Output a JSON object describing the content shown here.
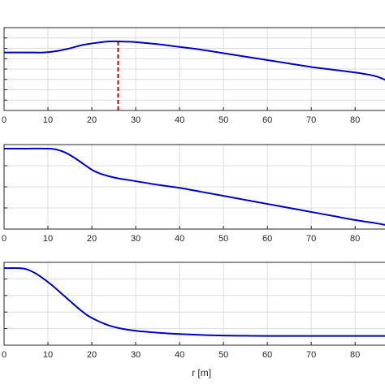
{
  "chart_data": [
    {
      "type": "line",
      "xlabel": "",
      "ylabel": "",
      "xlim": [
        0,
        87
      ],
      "ylim": [
        0,
        6
      ],
      "grid": true,
      "xticks": [
        "0",
        "10",
        "20",
        "30",
        "40",
        "50",
        "60",
        "70",
        "80"
      ],
      "vline": {
        "x": 26,
        "color": "#cc0000",
        "style": "dashed"
      },
      "series": [
        {
          "color": "#0000bb",
          "x": [
            0,
            5,
            9,
            12,
            15,
            18,
            21,
            24,
            26,
            28,
            30,
            35,
            40,
            45,
            50,
            55,
            60,
            65,
            70,
            75,
            80,
            83,
            85,
            87
          ],
          "y": [
            4.2,
            4.2,
            4.2,
            4.3,
            4.5,
            4.75,
            4.9,
            5.0,
            5.0,
            4.98,
            4.95,
            4.8,
            4.6,
            4.4,
            4.15,
            3.9,
            3.65,
            3.4,
            3.15,
            2.95,
            2.75,
            2.6,
            2.45,
            2.2
          ]
        }
      ]
    },
    {
      "type": "line",
      "xlabel": "",
      "ylabel": "",
      "xlim": [
        0,
        87
      ],
      "ylim": [
        0,
        4.2
      ],
      "grid": true,
      "xticks": [
        "0",
        "10",
        "20",
        "30",
        "40",
        "50",
        "60",
        "70",
        "80"
      ],
      "series": [
        {
          "color": "#0000bb",
          "x": [
            0,
            5,
            10,
            12,
            14,
            16,
            18,
            20,
            22,
            24,
            26,
            28,
            30,
            35,
            40,
            45,
            50,
            55,
            60,
            65,
            70,
            75,
            80,
            85,
            87
          ],
          "y": [
            4.0,
            4.0,
            4.0,
            3.95,
            3.8,
            3.55,
            3.25,
            2.95,
            2.75,
            2.62,
            2.52,
            2.45,
            2.38,
            2.2,
            2.05,
            1.85,
            1.65,
            1.45,
            1.25,
            1.05,
            0.85,
            0.65,
            0.45,
            0.28,
            0.2
          ]
        }
      ]
    },
    {
      "type": "line",
      "xlabel": "r [m]",
      "ylabel": "",
      "xlim": [
        0,
        87
      ],
      "ylim": [
        0,
        4.3
      ],
      "grid": true,
      "xticks": [
        "0",
        "10",
        "20",
        "30",
        "40",
        "50",
        "60",
        "70",
        "80"
      ],
      "series": [
        {
          "color": "#0000bb",
          "x": [
            0,
            3,
            5,
            7,
            9,
            11,
            13,
            15,
            17,
            19,
            21,
            23,
            25,
            27,
            30,
            35,
            40,
            45,
            50,
            55,
            60,
            70,
            80,
            87
          ],
          "y": [
            4.0,
            4.0,
            3.95,
            3.75,
            3.45,
            3.1,
            2.7,
            2.3,
            1.9,
            1.55,
            1.3,
            1.1,
            0.95,
            0.85,
            0.75,
            0.65,
            0.58,
            0.53,
            0.5,
            0.49,
            0.48,
            0.48,
            0.48,
            0.48
          ]
        }
      ]
    }
  ]
}
